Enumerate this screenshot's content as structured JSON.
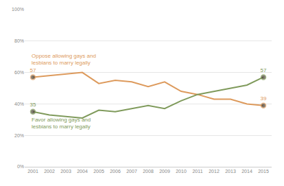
{
  "chart_data": {
    "type": "line",
    "x": [
      2001,
      2002,
      2003,
      2004,
      2005,
      2006,
      2007,
      2008,
      2009,
      2010,
      2011,
      2012,
      2013,
      2014,
      2015
    ],
    "series": [
      {
        "name": "Oppose allowing gays and lesbians to marry legally",
        "color": "#dd9a5c",
        "values": [
          57,
          58,
          59,
          60,
          53,
          55,
          54,
          51,
          54,
          48,
          46,
          43,
          43,
          40,
          39
        ],
        "value_labels": [
          "57",
          null,
          null,
          null,
          null,
          null,
          null,
          null,
          null,
          null,
          null,
          null,
          null,
          null,
          "39"
        ]
      },
      {
        "name": "Favor allowing gays and lesbians to marry legally",
        "color": "#7f9a5b",
        "values": [
          35,
          33,
          32,
          31,
          36,
          35,
          37,
          39,
          37,
          42,
          46,
          48,
          50,
          52,
          57
        ],
        "value_labels": [
          "35",
          null,
          null,
          null,
          null,
          null,
          null,
          null,
          null,
          null,
          null,
          null,
          null,
          null,
          "57"
        ]
      }
    ],
    "data_labels": true,
    "marker": "circle",
    "xlim": [
      2000.5,
      2015.5
    ],
    "xticks": [
      2001,
      2002,
      2003,
      2004,
      2005,
      2006,
      2007,
      2008,
      2009,
      2010,
      2011,
      2012,
      2013,
      2014,
      2015
    ],
    "ylim": [
      0,
      100
    ],
    "yticks": [
      {
        "value": 0,
        "label": "0%"
      },
      {
        "value": 20,
        "label": "20%"
      },
      {
        "value": 40,
        "label": "40%"
      },
      {
        "value": 60,
        "label": "60%"
      },
      {
        "value": 80,
        "label": "80%"
      },
      {
        "value": 100,
        "label": "100%"
      }
    ],
    "grid": true
  }
}
